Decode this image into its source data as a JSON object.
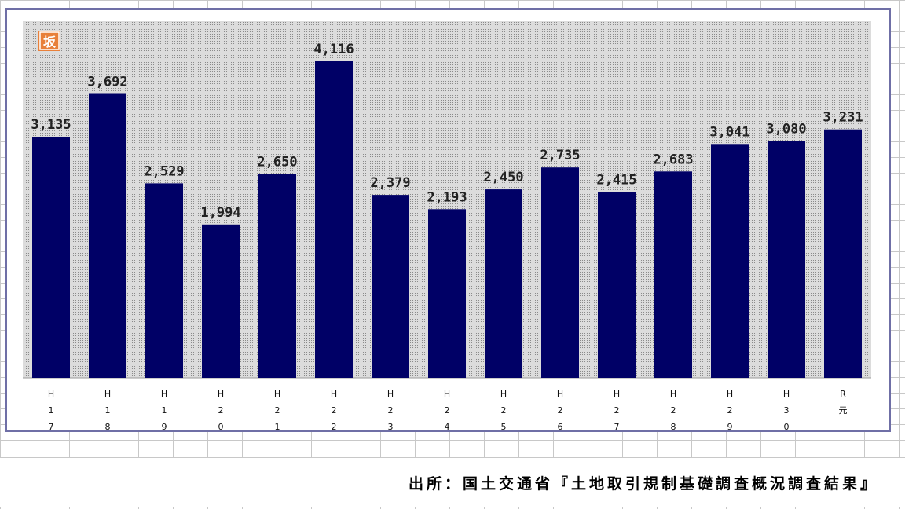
{
  "chart_data": {
    "type": "bar",
    "categories": [
      [
        "H",
        "1",
        "7"
      ],
      [
        "H",
        "1",
        "8"
      ],
      [
        "H",
        "1",
        "9"
      ],
      [
        "H",
        "2",
        "0"
      ],
      [
        "H",
        "2",
        "1"
      ],
      [
        "H",
        "2",
        "2"
      ],
      [
        "H",
        "2",
        "3"
      ],
      [
        "H",
        "2",
        "4"
      ],
      [
        "H",
        "2",
        "5"
      ],
      [
        "H",
        "2",
        "6"
      ],
      [
        "H",
        "2",
        "7"
      ],
      [
        "H",
        "2",
        "8"
      ],
      [
        "H",
        "2",
        "9"
      ],
      [
        "H",
        "3",
        "0"
      ],
      [
        "R",
        "元"
      ]
    ],
    "values": [
      3135,
      3692,
      2529,
      1994,
      2650,
      4116,
      2379,
      2193,
      2450,
      2735,
      2415,
      2683,
      3041,
      3080,
      3231
    ],
    "value_labels": [
      "3,135",
      "3,692",
      "2,529",
      "1,994",
      "2,650",
      "4,116",
      "2,379",
      "2,193",
      "2,450",
      "2,735",
      "2,415",
      "2,683",
      "3,041",
      "3,080",
      "3,231"
    ],
    "ylim": [
      0,
      4500
    ],
    "grid": false,
    "colors": {
      "bar": "#000066",
      "plot_bg": "#d9d9d9",
      "dots": "#8a8a8a",
      "frame": "#6f6fa6",
      "badge": "#e8803a"
    },
    "badge_text": "坂"
  },
  "source": "出所：国土交通省『土地取引規制基礎調査概況調査結果』"
}
